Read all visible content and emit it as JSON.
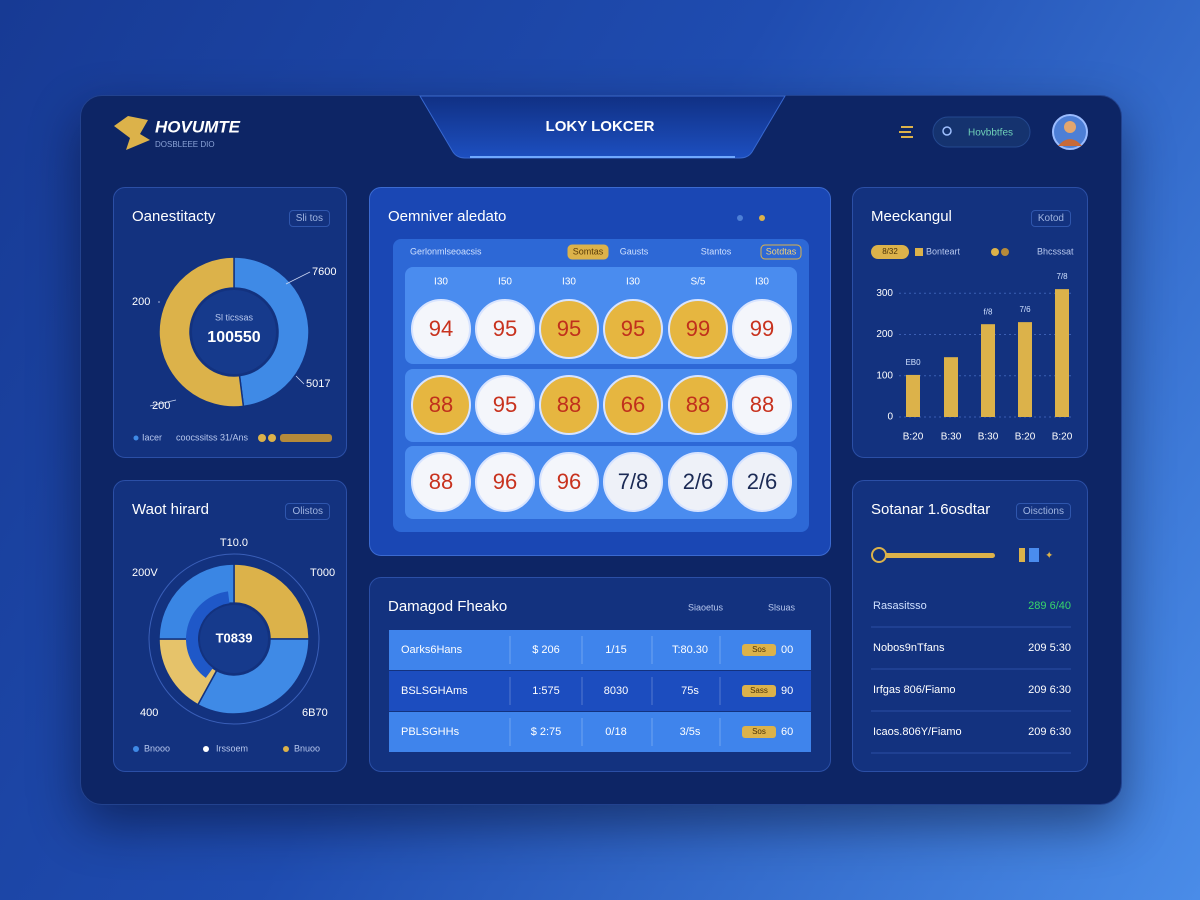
{
  "header": {
    "logo_title": "HOVUMTE",
    "logo_subtitle": "DOSBLEEE DIO",
    "tab_title": "LOKY LOKCER",
    "search": "Hovbbtfes"
  },
  "panels": {
    "overview": {
      "title": "Oanestitacty",
      "dropdown": "Sli tos",
      "chart": {
        "type": "donut",
        "center_label": "Sl ticssas",
        "center_value": "100550",
        "values": [
          48,
          52
        ],
        "colors": [
          "#3f8ae6",
          "#dcb24a"
        ],
        "callouts": [
          "7600",
          "200",
          "200",
          "5017"
        ]
      },
      "legend": [
        "Iacer",
        "coocssitss 31/Ans"
      ]
    },
    "weights": {
      "title": "Waot hirard",
      "dropdown": "Olistos",
      "chart": {
        "type": "donut",
        "center_value": "T0839",
        "values": [
          25,
          33,
          17,
          25
        ],
        "colors": [
          "#dcb24a",
          "#3f8ae6",
          "#e6c36a",
          "#3a86e4"
        ],
        "callouts": [
          "T10.0",
          "200V",
          "T000",
          "400",
          "6B70"
        ]
      },
      "legend": [
        "Bnooo",
        "Irssoem",
        "Bnuoo"
      ]
    },
    "draws": {
      "title": "Oemniver aledato",
      "filters": [
        "Gerlonmlseoacsis",
        "Somtas",
        "Gausts",
        "Stantos",
        "Sotdtas"
      ],
      "columns": [
        "I30",
        "I50",
        "I30",
        "I30",
        "S/5",
        "I30"
      ],
      "rows": [
        [
          {
            "label": "94",
            "style": "white"
          },
          {
            "label": "95",
            "style": "white"
          },
          {
            "label": "95",
            "style": "gold"
          },
          {
            "label": "95",
            "style": "gold"
          },
          {
            "label": "99",
            "style": "gold"
          },
          {
            "label": "99",
            "style": "white"
          }
        ],
        [
          {
            "label": "88",
            "style": "gold"
          },
          {
            "label": "95",
            "style": "white"
          },
          {
            "label": "88",
            "style": "gold"
          },
          {
            "label": "66",
            "style": "gold"
          },
          {
            "label": "88",
            "style": "gold"
          },
          {
            "label": "88",
            "style": "white"
          }
        ],
        [
          {
            "label": "88",
            "style": "white"
          },
          {
            "label": "96",
            "style": "white"
          },
          {
            "label": "96",
            "style": "white"
          },
          {
            "label": "7/8",
            "style": "plain"
          },
          {
            "label": "2/6",
            "style": "plain"
          },
          {
            "label": "2/6",
            "style": "plain"
          }
        ]
      ]
    },
    "table": {
      "title": "Damagod Fheako",
      "filters": [
        "Siaoetus",
        "Slsuas"
      ],
      "rows": [
        {
          "cells": [
            "Oarks6Hans",
            "$ 206",
            "1/15",
            "T:80.30"
          ],
          "badge": "Sos",
          "end": "00"
        },
        {
          "cells": [
            "BSLSGHAms",
            "1:575",
            "8030",
            "75s"
          ],
          "badge": "Sass",
          "end": "90"
        },
        {
          "cells": [
            "PBLSGHHs",
            "$ 2:75",
            "0/18",
            "3/5s"
          ],
          "badge": "Sos",
          "end": "60"
        }
      ]
    },
    "trend": {
      "title": "Meeckangul",
      "dropdown": "Kotod",
      "legend": [
        "8/32",
        "Bonteart",
        "Bhcsssat"
      ],
      "chart": {
        "type": "bar",
        "categories": [
          "B:20",
          "B:30",
          "B:30",
          "B:20",
          "B:20"
        ],
        "values": [
          102,
          145,
          225,
          230,
          310
        ],
        "annotations": [
          "EB0",
          null,
          "f/8",
          "7/6",
          "7/8"
        ],
        "color": "#dcb24a",
        "ylim": [
          0,
          320
        ],
        "yticks": [
          0,
          100,
          200,
          300
        ],
        "grid": true
      }
    },
    "status": {
      "title": "Sotanar 1.6osdtar",
      "dropdown": "Oisctions",
      "rows": [
        {
          "name": "Rasasitsso",
          "value": "289 6/40",
          "positive": true
        },
        {
          "name": "Nobos9nTfans",
          "value": "209 5:30",
          "positive": false
        },
        {
          "name": "Irfgas 806/Fiamo",
          "value": "209 6:30",
          "positive": false
        },
        {
          "name": "Icaos.806Y/Fiamo",
          "value": "209 6:30",
          "positive": false
        }
      ]
    }
  }
}
